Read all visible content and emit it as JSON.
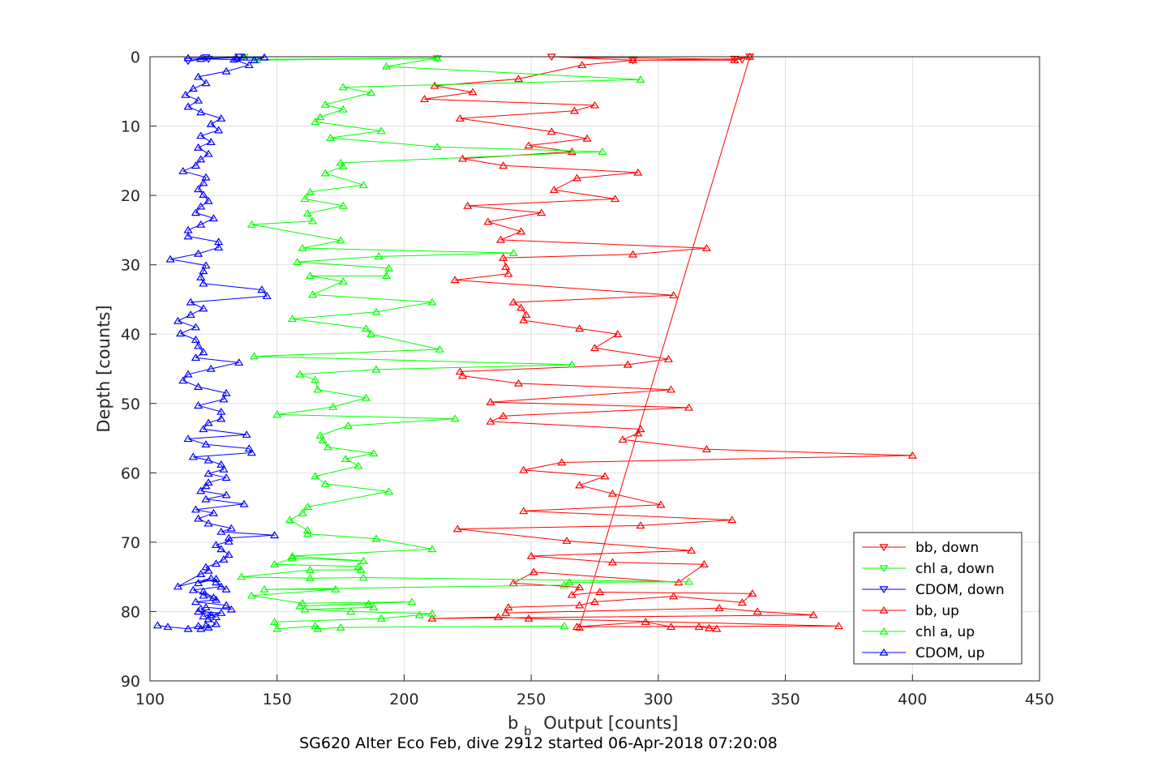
{
  "chart_data": {
    "type": "line",
    "title": "",
    "caption": "SG620 Alter Eco Feb, dive 2912 started 06-Apr-2018 07:20:08",
    "xlabel_main": "b",
    "xlabel_sub": "b",
    "xlabel_rest": "Output [counts]",
    "ylabel": "Depth [counts]",
    "xlim": [
      100,
      450
    ],
    "ylim": [
      0,
      90
    ],
    "y_reversed": true,
    "xticks": [
      100,
      150,
      200,
      250,
      300,
      350,
      400,
      450
    ],
    "yticks": [
      0,
      10,
      20,
      30,
      40,
      50,
      60,
      70,
      80,
      90
    ],
    "grid": true,
    "legend_position": "bottom-right",
    "series": [
      {
        "name": "bb, down",
        "color": "#ff0000",
        "marker": "triangle-down",
        "x": [
          336,
          330,
          290,
          258,
          333
        ],
        "y": [
          0,
          0.3,
          0.5,
          0,
          0.4
        ]
      },
      {
        "name": "chl a, down",
        "color": "#00ff00",
        "marker": "triangle-down",
        "x": [
          137,
          142,
          213
        ],
        "y": [
          0,
          0.4,
          0.2
        ]
      },
      {
        "name": "CDOM, down",
        "color": "#0000ff",
        "marker": "triangle-down",
        "x": [
          135,
          123,
          115,
          122
        ],
        "y": [
          0,
          0.3,
          0.6,
          0.1
        ]
      },
      {
        "name": "bb, up",
        "color": "#ff0000",
        "marker": "triangle-up",
        "x": [
          323,
          320,
          316,
          305,
          295,
          268,
          371,
          249,
          237,
          211,
          361,
          339,
          324,
          240,
          241,
          269,
          275,
          306,
          333,
          337,
          277,
          266,
          269,
          243,
          251,
          308,
          318,
          282,
          250,
          313,
          264,
          221,
          293,
          329,
          247,
          301,
          282,
          269,
          279,
          247,
          262,
          400,
          319,
          286,
          292,
          293,
          234,
          239,
          312,
          234,
          305,
          245,
          223,
          222,
          288,
          304,
          275,
          284,
          269,
          247,
          248,
          246,
          243,
          306,
          220,
          241,
          240,
          239,
          290,
          319,
          238,
          246,
          233,
          254,
          225,
          283,
          259,
          268,
          292,
          239,
          223,
          266,
          249,
          272,
          258,
          222,
          267,
          275,
          208,
          227,
          212,
          245,
          270,
          290,
          330,
          336
        ],
        "y": [
          82.5,
          82.4,
          82.2,
          82.2,
          81.5,
          82.2,
          82.1,
          81.0,
          80.8,
          81.0,
          80.5,
          80.0,
          79.5,
          80.2,
          79.4,
          79.1,
          78.6,
          77.8,
          78.7,
          77.4,
          77.2,
          77.6,
          76.5,
          75.9,
          74.3,
          75.8,
          73.2,
          72.9,
          72.0,
          71.2,
          69.8,
          68.1,
          67.6,
          66.8,
          65.5,
          64.6,
          63.0,
          61.8,
          60.5,
          59.6,
          58.5,
          57.5,
          56.6,
          55.2,
          54.3,
          53.7,
          52.6,
          51.8,
          50.6,
          49.8,
          48.0,
          47.1,
          46.0,
          45.4,
          44.4,
          43.6,
          42.0,
          40.0,
          39.2,
          38.0,
          37.2,
          36.2,
          35.4,
          34.4,
          32.2,
          31.3,
          30.3,
          29.0,
          28.5,
          27.6,
          26.4,
          25.2,
          23.8,
          22.5,
          21.5,
          20.5,
          19.2,
          17.5,
          16.7,
          15.7,
          14.7,
          13.7,
          12.8,
          11.8,
          10.8,
          8.9,
          7.8,
          7.0,
          6.1,
          5.1,
          4.2,
          3.2,
          1.2,
          0.5,
          0.5,
          0
        ],
        "end_x": [
          269
        ],
        "end_y": [
          82.3
        ]
      },
      {
        "name": "chl a, up",
        "color": "#00ff00",
        "marker": "triangle-up",
        "x": [
          263,
          175,
          166,
          165,
          150,
          149,
          191,
          206,
          211,
          179,
          161,
          188,
          186,
          159,
          203,
          160,
          140,
          173,
          145,
          263,
          265,
          312,
          184,
          163,
          136,
          163,
          183,
          182,
          149,
          156,
          184,
          156,
          211,
          189,
          162,
          162,
          155,
          160,
          162,
          194,
          169,
          165,
          182,
          177,
          188,
          170,
          168,
          167,
          178,
          220,
          150,
          172,
          185,
          166,
          165,
          159,
          189,
          266,
          141,
          214,
          187,
          185,
          156,
          189,
          211,
          164,
          176,
          163,
          193,
          194,
          158,
          190,
          243,
          160,
          175,
          140,
          164,
          162,
          176,
          161,
          163,
          184,
          169,
          176,
          175,
          278,
          213,
          171,
          191,
          165,
          167,
          176,
          169,
          187,
          176,
          293,
          193,
          213,
          142
        ],
        "y": [
          82.1,
          82.3,
          82.5,
          82.1,
          82.5,
          81.5,
          81.0,
          80.5,
          80.3,
          80.0,
          79.7,
          79.4,
          78.9,
          79.2,
          78.6,
          78.8,
          77.7,
          76.8,
          76.8,
          76.2,
          75.8,
          75.7,
          75.1,
          75.2,
          75.0,
          74.0,
          74.0,
          73.5,
          73.2,
          72.3,
          72.7,
          72.0,
          71.0,
          69.5,
          68.8,
          68.3,
          66.8,
          65.8,
          64.9,
          62.7,
          61.6,
          60.5,
          59.0,
          58.0,
          57.2,
          56.3,
          55.3,
          54.6,
          53.2,
          52.2,
          51.6,
          50.5,
          49.2,
          48.0,
          46.6,
          45.8,
          45.1,
          44.4,
          43.2,
          42.2,
          40.0,
          39.2,
          37.8,
          36.8,
          35.4,
          34.3,
          32.4,
          31.6,
          31.6,
          30.5,
          29.6,
          28.8,
          28.3,
          27.6,
          26.5,
          24.2,
          23.7,
          22.6,
          21.5,
          20.5,
          19.5,
          18.5,
          16.8,
          15.8,
          15.3,
          13.7,
          13.0,
          11.7,
          10.7,
          9.4,
          8.7,
          7.6,
          6.9,
          5.2,
          4.4,
          3.3,
          1.4,
          0.2,
          0.5
        ]
      },
      {
        "name": "CDOM, up",
        "color": "#0000ff",
        "marker": "triangle-up",
        "x": [
          103,
          107,
          115,
          119,
          120,
          122,
          123,
          126,
          123,
          124,
          121,
          128,
          119,
          126,
          120,
          122,
          132,
          130,
          118,
          126,
          121,
          121,
          125,
          117,
          128,
          130,
          126,
          126,
          119,
          124,
          111,
          120,
          123,
          122,
          126,
          129,
          131,
          128,
          126,
          131,
          131,
          149,
          128,
          132,
          123,
          119,
          125,
          118,
          137,
          122,
          130,
          120,
          122,
          123,
          130,
          123,
          129,
          128,
          123,
          117,
          140,
          139,
          122,
          115,
          138,
          121,
          123,
          128,
          128,
          119,
          129,
          130,
          119,
          113,
          115,
          124,
          135,
          118,
          121,
          119,
          118,
          112,
          118,
          111,
          116,
          121,
          116,
          146,
          144,
          121,
          120,
          121,
          122,
          108,
          119,
          127,
          127,
          115,
          115,
          120,
          125,
          118,
          120,
          123,
          121,
          119,
          121,
          122,
          113,
          118,
          120,
          123,
          119,
          124,
          120,
          127,
          124,
          128,
          120,
          115,
          119,
          114,
          117,
          122,
          119,
          130,
          139,
          133,
          134,
          145,
          141,
          120,
          137,
          115
        ],
        "y": [
          82.0,
          82.2,
          82.5,
          82.1,
          82.5,
          82.0,
          82.3,
          81.8,
          81.1,
          80.5,
          80.7,
          80.2,
          80.0,
          80.8,
          79.6,
          79.4,
          79.7,
          79.1,
          78.6,
          78.3,
          77.7,
          77.1,
          78.0,
          76.9,
          76.4,
          76.8,
          75.8,
          75.3,
          75.9,
          75.2,
          76.4,
          74.6,
          74.1,
          73.6,
          73.1,
          72.5,
          71.8,
          71.0,
          70.4,
          69.9,
          69.4,
          69.0,
          68.5,
          68.0,
          67.3,
          66.6,
          65.8,
          65.3,
          64.5,
          63.8,
          63.2,
          62.6,
          61.9,
          61.4,
          60.7,
          60.1,
          59.5,
          58.8,
          58.2,
          57.7,
          57.1,
          56.5,
          55.9,
          55.1,
          54.5,
          53.7,
          52.8,
          52.2,
          51.2,
          50.3,
          49.4,
          48.5,
          47.6,
          46.7,
          45.8,
          45.0,
          44.1,
          43.4,
          42.6,
          41.7,
          40.8,
          39.9,
          39.0,
          38.1,
          37.2,
          36.3,
          35.4,
          34.5,
          33.6,
          32.7,
          31.8,
          30.9,
          30.1,
          29.2,
          28.4,
          27.5,
          26.7,
          25.9,
          25.0,
          24.2,
          23.3,
          22.5,
          21.6,
          20.8,
          19.9,
          19.1,
          18.2,
          17.4,
          16.5,
          15.7,
          14.8,
          14.0,
          13.1,
          12.3,
          11.4,
          10.6,
          9.7,
          8.9,
          8.0,
          7.2,
          6.3,
          5.5,
          4.6,
          3.8,
          2.9,
          2.1,
          1.2,
          0.4,
          0.2,
          0.1,
          0.5,
          0.3,
          0.1,
          0.2
        ]
      }
    ]
  }
}
